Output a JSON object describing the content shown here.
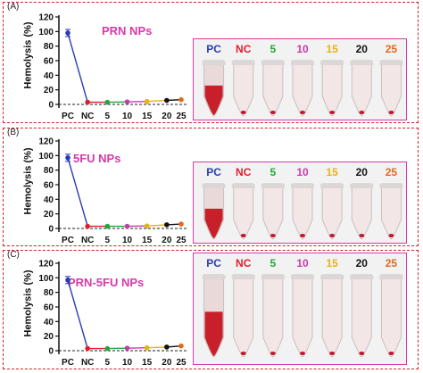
{
  "panels": [
    {
      "label": "(A)",
      "title": "PRN NPs",
      "photo": {
        "tubes": [
          {
            "label": "PC",
            "color": "#2a3cb0"
          },
          {
            "label": "NC",
            "color": "#e21c2a"
          },
          {
            "label": "5",
            "color": "#21a83a"
          },
          {
            "label": "10",
            "color": "#c93aaa"
          },
          {
            "label": "15",
            "color": "#e8b215"
          },
          {
            "label": "20",
            "color": "#111111"
          },
          {
            "label": "25",
            "color": "#e06a1e"
          }
        ]
      }
    },
    {
      "label": "(B)",
      "title": "5FU NPs",
      "photo": {
        "tubes": [
          {
            "label": "PC",
            "color": "#2a3cb0"
          },
          {
            "label": "NC",
            "color": "#e21c2a"
          },
          {
            "label": "5",
            "color": "#21a83a"
          },
          {
            "label": "10",
            "color": "#c93aaa"
          },
          {
            "label": "15",
            "color": "#e8b215"
          },
          {
            "label": "20",
            "color": "#111111"
          },
          {
            "label": "25",
            "color": "#e06a1e"
          }
        ]
      }
    },
    {
      "label": "(C)",
      "title": "PRN-5FU NPs",
      "photo": {
        "tubes": [
          {
            "label": "PC",
            "color": "#2a3cb0"
          },
          {
            "label": "NC",
            "color": "#e21c2a"
          },
          {
            "label": "5",
            "color": "#21a83a"
          },
          {
            "label": "10",
            "color": "#c93aaa"
          },
          {
            "label": "15",
            "color": "#e8b215"
          },
          {
            "label": "20",
            "color": "#111111"
          },
          {
            "label": "25",
            "color": "#e06a1e"
          }
        ]
      }
    }
  ],
  "chart_data": [
    {
      "type": "line",
      "title": "PRN NPs",
      "ylabel": "Hemolysis (%)",
      "categories": [
        "PC",
        "NC",
        "5",
        "10",
        "15",
        "20",
        "25"
      ],
      "values": [
        98,
        3,
        3,
        3.5,
        4,
        5.5,
        6.5
      ],
      "point_colors": [
        "#2a3cb0",
        "#e21c2a",
        "#21a83a",
        "#c93aaa",
        "#e8b215",
        "#111111",
        "#e06a1e"
      ],
      "line_colors": [
        "#2a3cb0",
        "#e21c2a",
        "#21a83a",
        "#c93aaa",
        "#e8b215",
        "#111111"
      ],
      "ylim": [
        0,
        120
      ],
      "yticks": [
        0,
        20,
        40,
        60,
        80,
        100,
        120
      ],
      "zero_line": "dashed"
    },
    {
      "type": "line",
      "title": "5FU NPs",
      "ylabel": "Hemolysis (%)",
      "categories": [
        "PC",
        "NC",
        "5",
        "10",
        "15",
        "20",
        "25"
      ],
      "values": [
        97,
        3,
        3,
        3,
        3.5,
        5,
        6
      ],
      "point_colors": [
        "#2a3cb0",
        "#e21c2a",
        "#21a83a",
        "#c93aaa",
        "#e8b215",
        "#111111",
        "#e06a1e"
      ],
      "line_colors": [
        "#2a3cb0",
        "#e21c2a",
        "#21a83a",
        "#c93aaa",
        "#e8b215",
        "#111111"
      ],
      "ylim": [
        0,
        120
      ],
      "yticks": [
        0,
        20,
        40,
        60,
        80,
        100,
        120
      ],
      "zero_line": "dashed"
    },
    {
      "type": "line",
      "title": "PRN-5FU NPs",
      "ylabel": "Hemolysis (%)",
      "categories": [
        "PC",
        "NC",
        "5",
        "10",
        "15",
        "20",
        "25"
      ],
      "values": [
        97,
        3,
        3,
        3.5,
        4,
        5,
        6.5
      ],
      "point_colors": [
        "#2a3cb0",
        "#e21c2a",
        "#21a83a",
        "#c93aaa",
        "#e8b215",
        "#111111",
        "#e06a1e"
      ],
      "line_colors": [
        "#2a3cb0",
        "#e21c2a",
        "#21a83a",
        "#c93aaa",
        "#e8b215",
        "#111111"
      ],
      "ylim": [
        0,
        120
      ],
      "yticks": [
        0,
        20,
        40,
        60,
        80,
        100,
        120
      ],
      "zero_line": "dashed"
    }
  ]
}
